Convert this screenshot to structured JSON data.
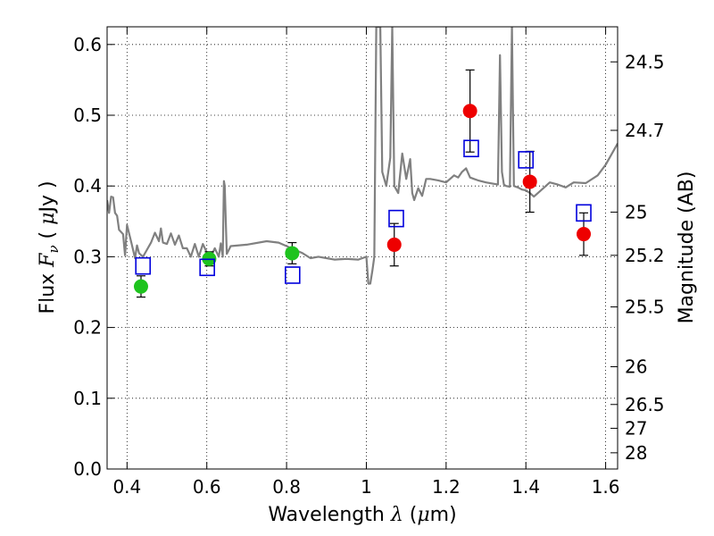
{
  "chart_data": {
    "type": "scatter",
    "xlabel": {
      "prefix": "Wavelength ",
      "symbol": "λ",
      "unit_open": " (",
      "unit_mu": "μ",
      "unit_rest": "m)"
    },
    "ylabel": {
      "prefix": "Flux ",
      "symbol": "F",
      "sub": "ν",
      "unit_open": " ( ",
      "unit_mu": "μ",
      "unit_rest": "Jy )"
    },
    "y2label": "Magnitude (AB)",
    "xlim": [
      0.35,
      1.63
    ],
    "ylim": [
      0.0,
      0.625
    ],
    "grid": true,
    "xticks": [
      {
        "v": 0.4,
        "label": "0.4"
      },
      {
        "v": 0.6,
        "label": "0.6"
      },
      {
        "v": 0.8,
        "label": "0.8"
      },
      {
        "v": 1.0,
        "label": "1"
      },
      {
        "v": 1.2,
        "label": "1.2"
      },
      {
        "v": 1.4,
        "label": "1.4"
      },
      {
        "v": 1.6,
        "label": "1.6"
      }
    ],
    "yticks": [
      {
        "v": 0.0,
        "label": "0.0"
      },
      {
        "v": 0.1,
        "label": "0.1"
      },
      {
        "v": 0.2,
        "label": "0.2"
      },
      {
        "v": 0.3,
        "label": "0.3"
      },
      {
        "v": 0.4,
        "label": "0.4"
      },
      {
        "v": 0.5,
        "label": "0.5"
      },
      {
        "v": 0.6,
        "label": "0.6"
      }
    ],
    "y2ticks": [
      {
        "v": 24.5,
        "label": "24.5"
      },
      {
        "v": 24.7,
        "label": "24.7"
      },
      {
        "v": 25.0,
        "label": "25"
      },
      {
        "v": 25.2,
        "label": "25.2"
      },
      {
        "v": 25.5,
        "label": "25.5"
      },
      {
        "v": 26.0,
        "label": "26"
      },
      {
        "v": 26.5,
        "label": "26.5"
      },
      {
        "v": 27.0,
        "label": "27"
      },
      {
        "v": 28.0,
        "label": "28"
      }
    ],
    "colors": {
      "model": "#808080",
      "green": "#1ec31e",
      "red": "#ee0000",
      "blue": "#0000dd"
    },
    "model_spectrum": {
      "x": [
        0.35,
        0.355,
        0.36,
        0.365,
        0.37,
        0.375,
        0.38,
        0.39,
        0.395,
        0.4,
        0.41,
        0.42,
        0.425,
        0.43,
        0.44,
        0.45,
        0.46,
        0.47,
        0.48,
        0.485,
        0.49,
        0.5,
        0.51,
        0.52,
        0.53,
        0.54,
        0.55,
        0.56,
        0.57,
        0.58,
        0.59,
        0.6,
        0.61,
        0.62,
        0.63,
        0.635,
        0.64,
        0.643,
        0.645,
        0.65,
        0.66,
        0.7,
        0.75,
        0.78,
        0.8,
        0.82,
        0.84,
        0.86,
        0.88,
        0.9,
        0.92,
        0.95,
        0.98,
        1.0,
        1.005,
        1.01,
        1.015,
        1.02,
        1.025,
        1.03,
        1.035,
        1.04,
        1.05,
        1.06,
        1.065,
        1.07,
        1.08,
        1.09,
        1.1,
        1.11,
        1.115,
        1.12,
        1.13,
        1.14,
        1.15,
        1.16,
        1.18,
        1.2,
        1.22,
        1.23,
        1.24,
        1.25,
        1.26,
        1.27,
        1.28,
        1.3,
        1.33,
        1.335,
        1.34,
        1.345,
        1.35,
        1.36,
        1.365,
        1.37,
        1.38,
        1.39,
        1.4,
        1.41,
        1.42,
        1.44,
        1.46,
        1.48,
        1.5,
        1.52,
        1.55,
        1.58,
        1.6,
        1.63
      ],
      "y": [
        0.38,
        0.362,
        0.385,
        0.384,
        0.362,
        0.358,
        0.338,
        0.332,
        0.302,
        0.345,
        0.322,
        0.298,
        0.316,
        0.305,
        0.3,
        0.31,
        0.32,
        0.334,
        0.322,
        0.34,
        0.32,
        0.318,
        0.333,
        0.317,
        0.33,
        0.312,
        0.312,
        0.3,
        0.318,
        0.3,
        0.318,
        0.306,
        0.3,
        0.312,
        0.3,
        0.319,
        0.3,
        0.407,
        0.4,
        0.304,
        0.315,
        0.317,
        0.322,
        0.32,
        0.315,
        0.31,
        0.305,
        0.298,
        0.3,
        0.298,
        0.296,
        0.297,
        0.296,
        0.3,
        0.262,
        0.262,
        0.28,
        0.3,
        0.625,
        0.625,
        0.625,
        0.42,
        0.4,
        0.44,
        0.625,
        0.4,
        0.39,
        0.446,
        0.41,
        0.438,
        0.39,
        0.38,
        0.397,
        0.386,
        0.41,
        0.41,
        0.408,
        0.405,
        0.415,
        0.412,
        0.42,
        0.425,
        0.412,
        0.41,
        0.408,
        0.405,
        0.402,
        0.585,
        0.42,
        0.402,
        0.4,
        0.399,
        0.625,
        0.4,
        0.398,
        0.395,
        0.394,
        0.39,
        0.385,
        0.395,
        0.405,
        0.402,
        0.398,
        0.405,
        0.404,
        0.415,
        0.43,
        0.46
      ],
      "clip_top": true
    },
    "observed_points": [
      {
        "x": 0.435,
        "y": 0.258,
        "err": 0.015,
        "color": "green"
      },
      {
        "x": 0.606,
        "y": 0.297,
        "err": 0.01,
        "color": "green"
      },
      {
        "x": 0.814,
        "y": 0.305,
        "err": 0.015,
        "color": "green"
      },
      {
        "x": 1.07,
        "y": 0.317,
        "err": 0.03,
        "color": "red"
      },
      {
        "x": 1.26,
        "y": 0.506,
        "err": 0.058,
        "color": "red"
      },
      {
        "x": 1.41,
        "y": 0.406,
        "err": 0.043,
        "color": "red"
      },
      {
        "x": 1.545,
        "y": 0.332,
        "err": 0.03,
        "color": "red"
      }
    ],
    "model_points": [
      {
        "x": 0.44,
        "y": 0.287
      },
      {
        "x": 0.601,
        "y": 0.285
      },
      {
        "x": 0.815,
        "y": 0.274
      },
      {
        "x": 1.075,
        "y": 0.354
      },
      {
        "x": 1.263,
        "y": 0.453
      },
      {
        "x": 1.4,
        "y": 0.437
      },
      {
        "x": 1.545,
        "y": 0.362
      }
    ]
  }
}
